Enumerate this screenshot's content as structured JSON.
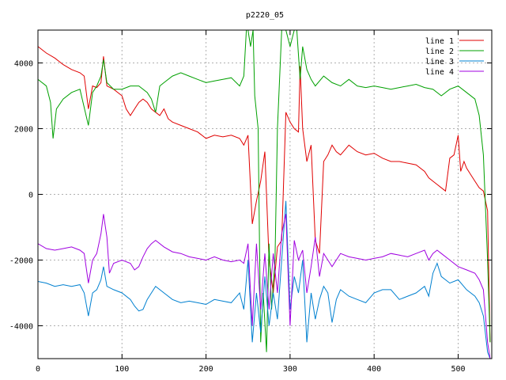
{
  "chart_data": {
    "type": "line",
    "title": "p2220_05",
    "xlabel": "",
    "ylabel": "",
    "xlim": [
      0,
      540
    ],
    "ylim": [
      -5000,
      5000
    ],
    "xticks": [
      0,
      100,
      200,
      300,
      400,
      500
    ],
    "yticks": [
      -4000,
      -2000,
      0,
      2000,
      4000
    ],
    "grid": true,
    "legend_position": "top-right",
    "series": [
      {
        "name": "line 1",
        "color": "#e00000",
        "points": [
          [
            0,
            4500
          ],
          [
            10,
            4300
          ],
          [
            20,
            4150
          ],
          [
            30,
            3950
          ],
          [
            40,
            3800
          ],
          [
            50,
            3700
          ],
          [
            55,
            3600
          ],
          [
            60,
            2600
          ],
          [
            65,
            3300
          ],
          [
            70,
            3250
          ],
          [
            75,
            3400
          ],
          [
            78,
            4200
          ],
          [
            82,
            3300
          ],
          [
            90,
            3200
          ],
          [
            100,
            3000
          ],
          [
            105,
            2600
          ],
          [
            110,
            2400
          ],
          [
            115,
            2600
          ],
          [
            120,
            2800
          ],
          [
            125,
            2900
          ],
          [
            130,
            2800
          ],
          [
            135,
            2600
          ],
          [
            140,
            2500
          ],
          [
            145,
            2400
          ],
          [
            150,
            2600
          ],
          [
            155,
            2300
          ],
          [
            160,
            2200
          ],
          [
            170,
            2100
          ],
          [
            180,
            2000
          ],
          [
            190,
            1900
          ],
          [
            200,
            1700
          ],
          [
            210,
            1800
          ],
          [
            220,
            1750
          ],
          [
            230,
            1800
          ],
          [
            240,
            1700
          ],
          [
            245,
            1500
          ],
          [
            250,
            1800
          ],
          [
            255,
            -900
          ],
          [
            260,
            -200
          ],
          [
            265,
            400
          ],
          [
            270,
            1300
          ],
          [
            275,
            -2000
          ],
          [
            280,
            -3000
          ],
          [
            285,
            -1600
          ],
          [
            290,
            -1400
          ],
          [
            295,
            2500
          ],
          [
            300,
            2200
          ],
          [
            305,
            2000
          ],
          [
            310,
            1900
          ],
          [
            312,
            3900
          ],
          [
            315,
            2000
          ],
          [
            320,
            1000
          ],
          [
            325,
            1500
          ],
          [
            330,
            -1400
          ],
          [
            335,
            -1800
          ],
          [
            340,
            1000
          ],
          [
            345,
            1200
          ],
          [
            350,
            1500
          ],
          [
            355,
            1300
          ],
          [
            360,
            1200
          ],
          [
            370,
            1500
          ],
          [
            380,
            1300
          ],
          [
            390,
            1200
          ],
          [
            400,
            1250
          ],
          [
            410,
            1100
          ],
          [
            420,
            1000
          ],
          [
            430,
            1000
          ],
          [
            440,
            950
          ],
          [
            450,
            900
          ],
          [
            460,
            700
          ],
          [
            465,
            500
          ],
          [
            470,
            400
          ],
          [
            475,
            300
          ],
          [
            480,
            200
          ],
          [
            485,
            100
          ],
          [
            490,
            1100
          ],
          [
            495,
            1200
          ],
          [
            500,
            1800
          ],
          [
            503,
            700
          ],
          [
            507,
            1000
          ],
          [
            510,
            800
          ],
          [
            515,
            600
          ],
          [
            520,
            400
          ],
          [
            525,
            200
          ],
          [
            530,
            100
          ],
          [
            535,
            -500
          ],
          [
            538,
            -4500
          ]
        ]
      },
      {
        "name": "line 2",
        "color": "#00a000",
        "points": [
          [
            0,
            3500
          ],
          [
            10,
            3300
          ],
          [
            15,
            2800
          ],
          [
            18,
            1700
          ],
          [
            22,
            2600
          ],
          [
            30,
            2900
          ],
          [
            40,
            3100
          ],
          [
            50,
            3200
          ],
          [
            60,
            2100
          ],
          [
            65,
            3100
          ],
          [
            70,
            3300
          ],
          [
            75,
            3600
          ],
          [
            78,
            4100
          ],
          [
            82,
            3400
          ],
          [
            90,
            3200
          ],
          [
            100,
            3200
          ],
          [
            110,
            3300
          ],
          [
            120,
            3300
          ],
          [
            130,
            3100
          ],
          [
            135,
            2900
          ],
          [
            140,
            2500
          ],
          [
            145,
            3300
          ],
          [
            150,
            3400
          ],
          [
            160,
            3600
          ],
          [
            170,
            3700
          ],
          [
            180,
            3600
          ],
          [
            190,
            3500
          ],
          [
            200,
            3400
          ],
          [
            210,
            3450
          ],
          [
            220,
            3500
          ],
          [
            230,
            3550
          ],
          [
            240,
            3300
          ],
          [
            245,
            3600
          ],
          [
            248,
            5000
          ],
          [
            250,
            5000
          ],
          [
            253,
            4500
          ],
          [
            256,
            5000
          ],
          [
            258,
            3000
          ],
          [
            262,
            2000
          ],
          [
            265,
            -4500
          ],
          [
            268,
            -3000
          ],
          [
            272,
            -4800
          ],
          [
            275,
            -1500
          ],
          [
            278,
            -3500
          ],
          [
            282,
            -2000
          ],
          [
            285,
            2000
          ],
          [
            290,
            5000
          ],
          [
            295,
            5000
          ],
          [
            300,
            4500
          ],
          [
            305,
            5000
          ],
          [
            308,
            5000
          ],
          [
            312,
            3500
          ],
          [
            315,
            4500
          ],
          [
            320,
            3800
          ],
          [
            325,
            3500
          ],
          [
            330,
            3300
          ],
          [
            340,
            3600
          ],
          [
            350,
            3400
          ],
          [
            360,
            3300
          ],
          [
            370,
            3500
          ],
          [
            380,
            3300
          ],
          [
            390,
            3250
          ],
          [
            400,
            3300
          ],
          [
            410,
            3250
          ],
          [
            420,
            3200
          ],
          [
            430,
            3250
          ],
          [
            440,
            3300
          ],
          [
            450,
            3350
          ],
          [
            460,
            3250
          ],
          [
            470,
            3200
          ],
          [
            480,
            3000
          ],
          [
            490,
            3200
          ],
          [
            500,
            3300
          ],
          [
            510,
            3100
          ],
          [
            520,
            2900
          ],
          [
            525,
            2400
          ],
          [
            530,
            1200
          ],
          [
            535,
            -2000
          ],
          [
            538,
            -4500
          ]
        ]
      },
      {
        "name": "line 3",
        "color": "#0080d0",
        "points": [
          [
            0,
            -2650
          ],
          [
            10,
            -2700
          ],
          [
            20,
            -2800
          ],
          [
            30,
            -2750
          ],
          [
            40,
            -2800
          ],
          [
            50,
            -2750
          ],
          [
            55,
            -3000
          ],
          [
            60,
            -3700
          ],
          [
            65,
            -3000
          ],
          [
            70,
            -2900
          ],
          [
            75,
            -2600
          ],
          [
            78,
            -2200
          ],
          [
            82,
            -2800
          ],
          [
            90,
            -2900
          ],
          [
            100,
            -3000
          ],
          [
            110,
            -3200
          ],
          [
            115,
            -3400
          ],
          [
            120,
            -3550
          ],
          [
            125,
            -3500
          ],
          [
            130,
            -3200
          ],
          [
            135,
            -3000
          ],
          [
            140,
            -2800
          ],
          [
            150,
            -3000
          ],
          [
            160,
            -3200
          ],
          [
            170,
            -3300
          ],
          [
            180,
            -3250
          ],
          [
            190,
            -3300
          ],
          [
            200,
            -3350
          ],
          [
            210,
            -3200
          ],
          [
            220,
            -3250
          ],
          [
            230,
            -3300
          ],
          [
            240,
            -3000
          ],
          [
            245,
            -3500
          ],
          [
            250,
            -2000
          ],
          [
            255,
            -4500
          ],
          [
            260,
            -3000
          ],
          [
            265,
            -4200
          ],
          [
            270,
            -2500
          ],
          [
            275,
            -4000
          ],
          [
            280,
            -3000
          ],
          [
            285,
            -3800
          ],
          [
            290,
            -2000
          ],
          [
            295,
            -200
          ],
          [
            300,
            -3500
          ],
          [
            305,
            -2500
          ],
          [
            310,
            -3000
          ],
          [
            315,
            -2000
          ],
          [
            320,
            -4500
          ],
          [
            325,
            -3000
          ],
          [
            330,
            -3800
          ],
          [
            335,
            -3200
          ],
          [
            340,
            -2800
          ],
          [
            345,
            -3000
          ],
          [
            350,
            -3900
          ],
          [
            355,
            -3200
          ],
          [
            360,
            -2900
          ],
          [
            370,
            -3100
          ],
          [
            380,
            -3200
          ],
          [
            390,
            -3300
          ],
          [
            400,
            -3000
          ],
          [
            410,
            -2900
          ],
          [
            420,
            -2900
          ],
          [
            430,
            -3200
          ],
          [
            440,
            -3100
          ],
          [
            450,
            -3000
          ],
          [
            460,
            -2800
          ],
          [
            465,
            -3100
          ],
          [
            470,
            -2400
          ],
          [
            475,
            -2100
          ],
          [
            480,
            -2500
          ],
          [
            490,
            -2700
          ],
          [
            500,
            -2600
          ],
          [
            510,
            -2900
          ],
          [
            520,
            -3100
          ],
          [
            525,
            -3300
          ],
          [
            530,
            -3700
          ],
          [
            535,
            -4800
          ],
          [
            538,
            -5000
          ]
        ]
      },
      {
        "name": "line 4",
        "color": "#a000e0",
        "points": [
          [
            0,
            -1500
          ],
          [
            10,
            -1650
          ],
          [
            20,
            -1700
          ],
          [
            30,
            -1650
          ],
          [
            40,
            -1600
          ],
          [
            50,
            -1700
          ],
          [
            55,
            -1800
          ],
          [
            60,
            -2700
          ],
          [
            65,
            -2000
          ],
          [
            70,
            -1800
          ],
          [
            75,
            -1200
          ],
          [
            78,
            -600
          ],
          [
            82,
            -1300
          ],
          [
            85,
            -2400
          ],
          [
            90,
            -2100
          ],
          [
            100,
            -2000
          ],
          [
            110,
            -2100
          ],
          [
            115,
            -2300
          ],
          [
            120,
            -2200
          ],
          [
            125,
            -1900
          ],
          [
            130,
            -1650
          ],
          [
            135,
            -1500
          ],
          [
            140,
            -1400
          ],
          [
            150,
            -1600
          ],
          [
            160,
            -1750
          ],
          [
            170,
            -1800
          ],
          [
            180,
            -1900
          ],
          [
            190,
            -1950
          ],
          [
            200,
            -2000
          ],
          [
            210,
            -1900
          ],
          [
            220,
            -2000
          ],
          [
            230,
            -2050
          ],
          [
            240,
            -2000
          ],
          [
            245,
            -2100
          ],
          [
            250,
            -1500
          ],
          [
            255,
            -4000
          ],
          [
            260,
            -1500
          ],
          [
            265,
            -3500
          ],
          [
            270,
            -1800
          ],
          [
            275,
            -3500
          ],
          [
            280,
            -1800
          ],
          [
            285,
            -3000
          ],
          [
            290,
            -1200
          ],
          [
            295,
            -600
          ],
          [
            300,
            -4000
          ],
          [
            305,
            -1400
          ],
          [
            310,
            -2000
          ],
          [
            315,
            -1700
          ],
          [
            320,
            -3000
          ],
          [
            325,
            -2200
          ],
          [
            330,
            -1300
          ],
          [
            335,
            -2500
          ],
          [
            340,
            -1800
          ],
          [
            345,
            -2000
          ],
          [
            350,
            -2200
          ],
          [
            360,
            -1800
          ],
          [
            370,
            -1900
          ],
          [
            380,
            -1950
          ],
          [
            390,
            -2000
          ],
          [
            400,
            -1950
          ],
          [
            410,
            -1900
          ],
          [
            420,
            -1800
          ],
          [
            430,
            -1850
          ],
          [
            440,
            -1900
          ],
          [
            450,
            -1800
          ],
          [
            460,
            -1700
          ],
          [
            465,
            -2000
          ],
          [
            470,
            -1800
          ],
          [
            475,
            -1700
          ],
          [
            480,
            -1800
          ],
          [
            490,
            -2000
          ],
          [
            500,
            -2200
          ],
          [
            510,
            -2300
          ],
          [
            520,
            -2400
          ],
          [
            525,
            -2600
          ],
          [
            530,
            -2900
          ],
          [
            535,
            -4500
          ],
          [
            538,
            -5000
          ]
        ]
      }
    ]
  }
}
